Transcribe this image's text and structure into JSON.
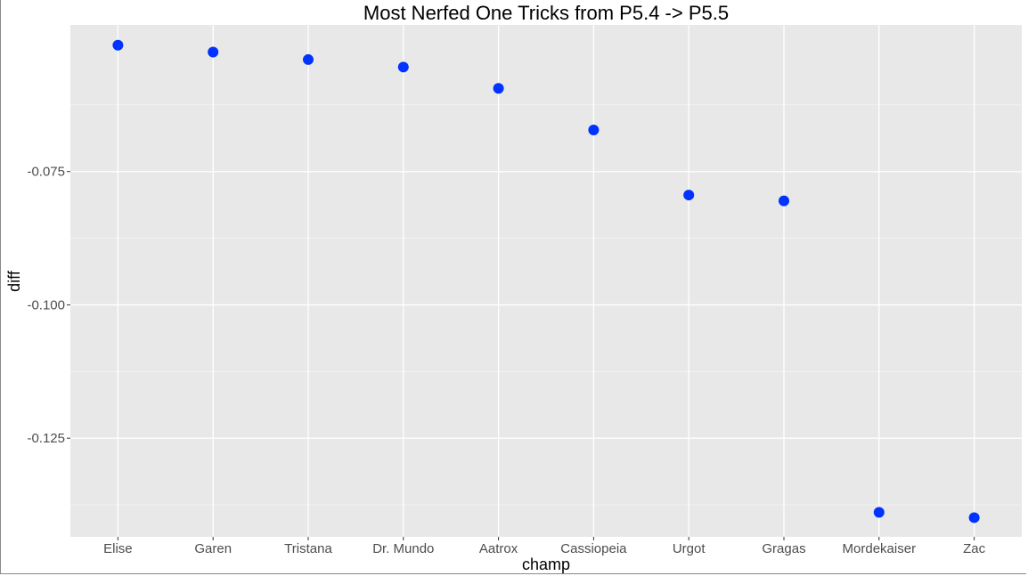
{
  "chart_data": {
    "type": "scatter",
    "title": "Most Nerfed One Tricks from P5.4 -> P5.5",
    "xlabel": "champ",
    "ylabel": "diff",
    "categories": [
      "Elise",
      "Garen",
      "Tristana",
      "Dr. Mundo",
      "Aatrox",
      "Cassiopeia",
      "Urgot",
      "Gragas",
      "Mordekaiser",
      "Zac"
    ],
    "values": [
      -0.0513,
      -0.0526,
      -0.054,
      -0.0554,
      -0.0594,
      -0.0672,
      -0.0794,
      -0.0805,
      -0.1389,
      -0.1399
    ],
    "y_ticks": [
      -0.075,
      -0.1,
      -0.125
    ],
    "y_tick_labels": [
      "-0.075",
      "-0.100",
      "-0.125"
    ],
    "ylim": [
      -0.1435,
      -0.0475
    ],
    "grid": true,
    "point_color": "#0033ff",
    "panel_color": "#e8e8e8",
    "grid_color": "#ffffff"
  }
}
